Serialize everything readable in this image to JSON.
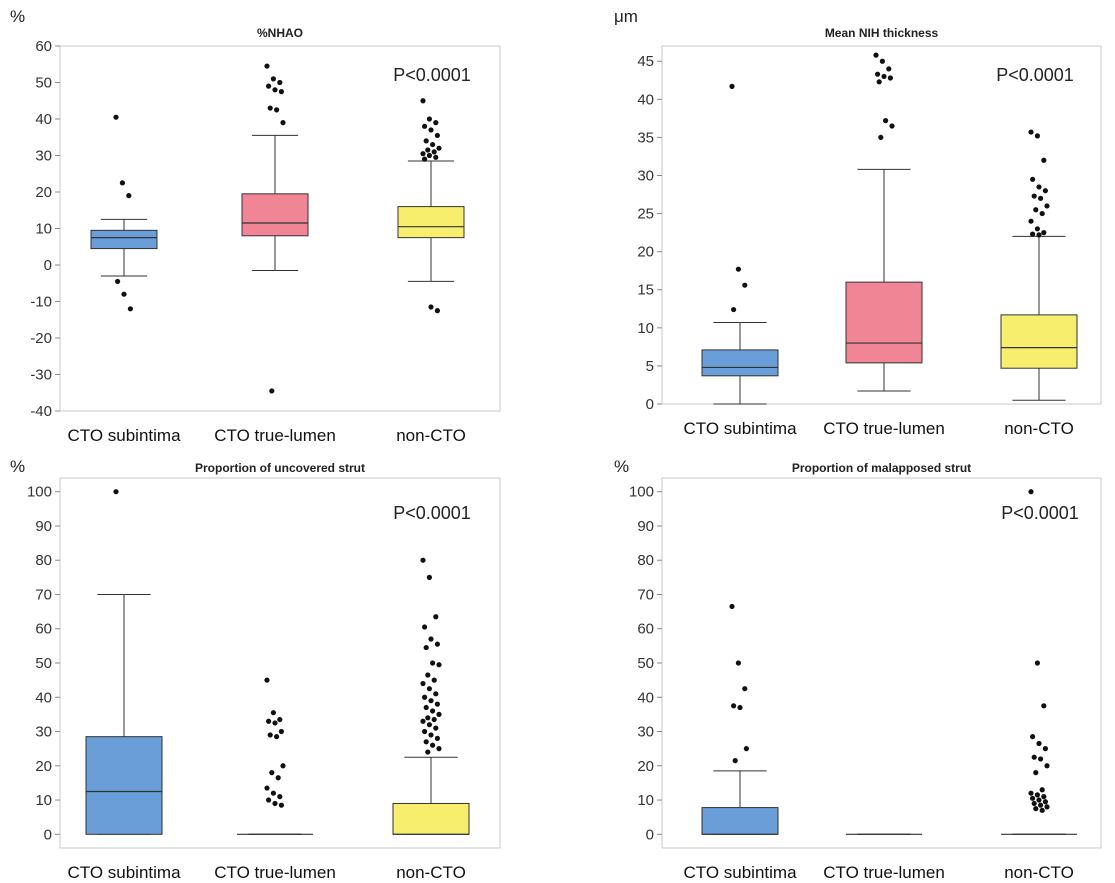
{
  "chart_data": [
    {
      "type": "box",
      "title": "%NHAO",
      "unit": "%",
      "p_value": "P<0.0001",
      "categories": [
        "CTO subintima",
        "CTO true-lumen",
        "non-CTO"
      ],
      "ylim": [
        -40,
        60
      ],
      "yticks": [
        60,
        50,
        40,
        30,
        20,
        10,
        0,
        -10,
        -20,
        -30,
        -40
      ],
      "grid": false,
      "boxes": [
        {
          "whisker_low": -3,
          "q1": 4.5,
          "median": 7.5,
          "q3": 9.5,
          "whisker_high": 12.5,
          "color": "#6a9ed8",
          "outliers": [
            40.5,
            22.5,
            19,
            -4.5,
            -8,
            -12
          ]
        },
        {
          "whisker_low": -1.5,
          "q1": 8,
          "median": 11.5,
          "q3": 19.5,
          "whisker_high": 35.5,
          "color": "#f08596",
          "outliers": [
            54.5,
            51,
            50,
            49,
            48,
            47.5,
            43,
            42.5,
            39,
            -34.5
          ]
        },
        {
          "whisker_low": -4.5,
          "q1": 7.5,
          "median": 10.5,
          "q3": 16,
          "whisker_high": 28.5,
          "color": "#f7ee6e",
          "outliers": [
            45,
            40,
            39,
            38,
            37,
            35.5,
            34,
            33,
            32,
            31.5,
            31,
            30.5,
            30,
            29.5,
            29,
            -11.5,
            -12.5
          ]
        }
      ]
    },
    {
      "type": "box",
      "title": "Mean NIH thickness",
      "unit": "μm",
      "p_value": "P<0.0001",
      "categories": [
        "CTO subintima",
        "CTO true-lumen",
        "non-CTO"
      ],
      "ylim": [
        0,
        47
      ],
      "yticks": [
        45,
        40,
        35,
        30,
        25,
        20,
        15,
        10,
        5,
        0
      ],
      "grid": false,
      "boxes": [
        {
          "whisker_low": 0,
          "q1": 3.7,
          "median": 4.8,
          "q3": 7.1,
          "whisker_high": 10.7,
          "color": "#6a9ed8",
          "outliers": [
            41.7,
            17.7,
            15.6,
            12.4
          ]
        },
        {
          "whisker_low": 1.7,
          "q1": 5.4,
          "median": 8,
          "q3": 16,
          "whisker_high": 30.8,
          "color": "#f08596",
          "outliers": [
            45.8,
            45,
            44,
            43.3,
            43,
            42.8,
            42.3,
            37.2,
            36.5,
            35
          ]
        },
        {
          "whisker_low": 0.5,
          "q1": 4.7,
          "median": 7.4,
          "q3": 11.7,
          "whisker_high": 22,
          "color": "#f7ee6e",
          "outliers": [
            35.7,
            35.2,
            32,
            29.5,
            28.5,
            28,
            27.3,
            27,
            26,
            25.5,
            25,
            24,
            23,
            22.5,
            22.3,
            22.2
          ]
        }
      ]
    },
    {
      "type": "box",
      "title": "Proportion of uncovered strut",
      "unit": "%",
      "p_value": "P<0.0001",
      "categories": [
        "CTO subintima",
        "CTO true-lumen",
        "non-CTO"
      ],
      "ylim": [
        -4,
        104
      ],
      "yticks": [
        100,
        90,
        80,
        70,
        60,
        50,
        40,
        30,
        20,
        10,
        0
      ],
      "grid": false,
      "boxes": [
        {
          "whisker_low": 0,
          "q1": 0,
          "median": 12.5,
          "q3": 28.5,
          "whisker_high": 70,
          "color": "#6a9ed8",
          "outliers": [
            100
          ]
        },
        {
          "whisker_low": 0,
          "q1": 0,
          "median": 0,
          "q3": 0,
          "whisker_high": 0,
          "color": "#f08596",
          "outliers": [
            45,
            35.5,
            33.5,
            33,
            32.5,
            30,
            29,
            28.5,
            20,
            18,
            16.5,
            13.5,
            12,
            11,
            10,
            9,
            8.5
          ]
        },
        {
          "whisker_low": 0,
          "q1": 0,
          "median": 0,
          "q3": 9,
          "whisker_high": 22.5,
          "color": "#f7ee6e",
          "outliers": [
            80,
            75,
            63.5,
            60.5,
            57,
            55.5,
            54.5,
            50,
            49.5,
            46.5,
            45,
            44,
            42.5,
            41,
            40,
            39,
            38,
            37,
            36,
            35,
            34,
            33.5,
            33,
            32,
            31,
            30,
            29,
            28,
            27,
            26,
            25,
            24
          ]
        }
      ]
    },
    {
      "type": "box",
      "title": "Proportion of malapposed strut",
      "unit": "%",
      "p_value": "P<0.0001",
      "categories": [
        "CTO subintima",
        "CTO true-lumen",
        "non-CTO"
      ],
      "ylim": [
        -4,
        104
      ],
      "yticks": [
        100,
        90,
        80,
        70,
        60,
        50,
        40,
        30,
        20,
        10,
        0
      ],
      "grid": false,
      "boxes": [
        {
          "whisker_low": 0,
          "q1": 0,
          "median": 0,
          "q3": 7.8,
          "whisker_high": 18.5,
          "color": "#6a9ed8",
          "outliers": [
            66.5,
            50,
            42.5,
            37.5,
            37,
            25,
            21.5
          ]
        },
        {
          "whisker_low": 0,
          "q1": 0,
          "median": 0,
          "q3": 0,
          "whisker_high": 0,
          "color": "#f08596",
          "outliers": []
        },
        {
          "whisker_low": 0,
          "q1": 0,
          "median": 0,
          "q3": 0,
          "whisker_high": 0,
          "color": "#f7ee6e",
          "outliers": [
            100,
            50,
            37.5,
            28.5,
            26.5,
            25,
            22.5,
            22,
            20,
            18,
            13,
            12,
            11.5,
            11,
            10.5,
            10,
            9.5,
            9,
            8.5,
            8,
            7.5,
            7
          ]
        }
      ]
    }
  ]
}
